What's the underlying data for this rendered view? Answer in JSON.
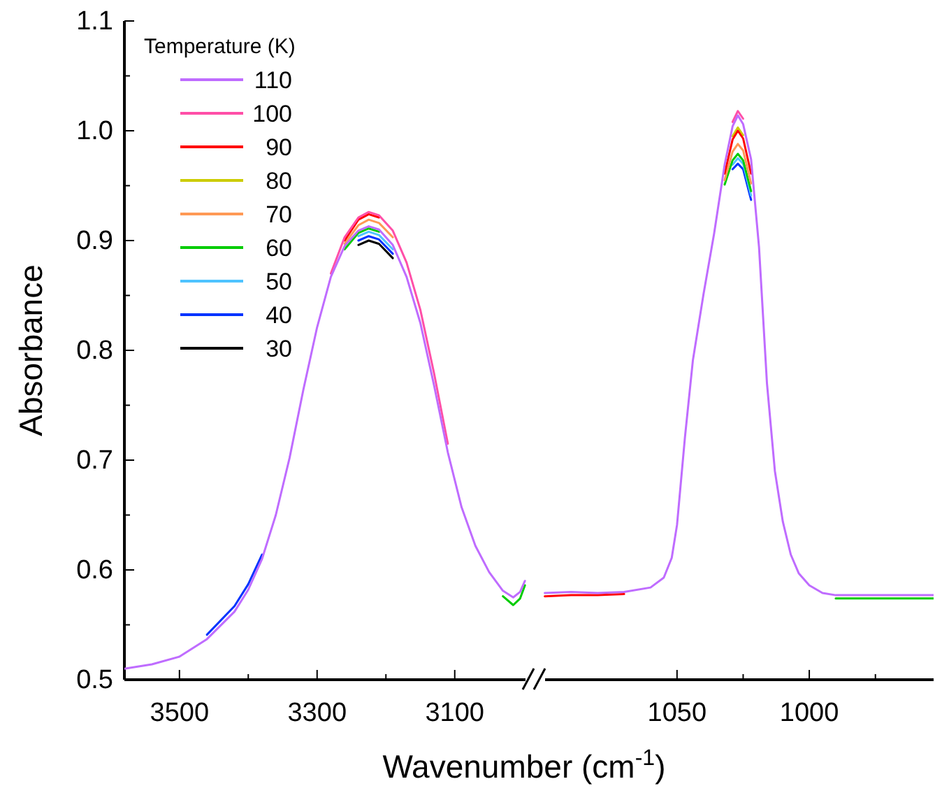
{
  "chart_data": [
    {
      "type": "line",
      "xlabel": "Wavenumber (cm$^{-1}$)",
      "ylabel": "Absorbance",
      "legend_title": "Temperature (K)",
      "legend": "top left",
      "xlim": [
        3580,
        2985
      ],
      "xticks": [
        3500,
        {
          "value": 3400,
          "label": null
        },
        3300,
        {
          "value": 3200,
          "label": null
        },
        3100
      ],
      "ylim": [
        0.5,
        1.1
      ],
      "yticks": [
        {
          "value": 0.5,
          "label": "0.5"
        },
        {
          "value": 0.55,
          "label": null
        },
        {
          "value": 0.6,
          "label": "0.6"
        },
        {
          "value": 0.65,
          "label": null
        },
        {
          "value": 0.7,
          "label": "0.7"
        },
        {
          "value": 0.75,
          "label": null
        },
        {
          "value": 0.8,
          "label": "0.8"
        },
        {
          "value": 0.85,
          "label": null
        },
        {
          "value": 0.9,
          "label": "0.9"
        },
        {
          "value": 0.95,
          "label": null
        },
        {
          "value": 1.0,
          "label": "1.0"
        },
        {
          "value": 1.05,
          "label": null
        },
        {
          "value": 1.1,
          "label": "1.1"
        }
      ],
      "x": [
        3580,
        3540,
        3500,
        3460,
        3420,
        3400,
        3380,
        3360,
        3340,
        3320,
        3300,
        3280,
        3260,
        3240,
        3225,
        3210,
        3190,
        3170,
        3150,
        3130,
        3110,
        3090,
        3070,
        3050,
        3030,
        3015,
        3005,
        2998
      ],
      "series": [
        {
          "name": "110",
          "color": "#bf6cff",
          "values": [
            0.51,
            0.514,
            0.521,
            0.537,
            0.562,
            0.582,
            0.61,
            0.65,
            0.702,
            0.764,
            0.821,
            0.867,
            0.895,
            0.909,
            0.913,
            0.91,
            0.896,
            0.867,
            0.825,
            0.768,
            0.707,
            0.657,
            0.622,
            0.598,
            0.581,
            0.575,
            0.58,
            0.59
          ]
        },
        {
          "name": "100",
          "color": "#ff4fa8",
          "values": [
            null,
            null,
            null,
            null,
            null,
            null,
            null,
            null,
            null,
            null,
            null,
            0.87,
            0.903,
            0.921,
            0.926,
            0.923,
            0.909,
            0.88,
            0.837,
            0.779,
            0.715,
            null,
            null,
            null,
            null,
            null,
            null,
            null
          ]
        },
        {
          "name": "90",
          "color": "#ff0000",
          "values": [
            null,
            null,
            null,
            null,
            null,
            null,
            null,
            null,
            null,
            null,
            null,
            null,
            0.9,
            0.919,
            0.924,
            0.921,
            null,
            null,
            null,
            null,
            null,
            null,
            null,
            null,
            null,
            null,
            null,
            null
          ]
        },
        {
          "name": "80",
          "color": "#cccc00",
          "values": [
            null,
            null,
            null,
            null,
            null,
            null,
            null,
            null,
            null,
            null,
            null,
            null,
            null,
            null,
            null,
            null,
            null,
            null,
            null,
            null,
            null,
            null,
            null,
            null,
            null,
            null,
            null,
            null
          ]
        },
        {
          "name": "70",
          "color": "#ff9955",
          "values": [
            null,
            null,
            null,
            null,
            null,
            null,
            null,
            null,
            null,
            null,
            null,
            null,
            0.897,
            0.914,
            0.919,
            0.916,
            0.903,
            null,
            null,
            null,
            null,
            null,
            null,
            null,
            null,
            null,
            null,
            null
          ]
        },
        {
          "name": "60",
          "color": "#00cc00",
          "values": [
            null,
            null,
            null,
            null,
            null,
            null,
            null,
            null,
            null,
            null,
            null,
            null,
            0.892,
            0.907,
            0.911,
            0.908,
            null,
            null,
            null,
            null,
            null,
            null,
            null,
            null,
            0.576,
            0.568,
            0.574,
            0.586
          ]
        },
        {
          "name": "50",
          "color": "#4fc3ff",
          "values": [
            null,
            null,
            null,
            null,
            null,
            null,
            null,
            null,
            null,
            null,
            null,
            null,
            null,
            0.904,
            0.908,
            0.905,
            0.892,
            null,
            null,
            null,
            null,
            null,
            null,
            null,
            null,
            null,
            null,
            null
          ]
        },
        {
          "name": "40",
          "color": "#0033ff",
          "values": [
            null,
            null,
            null,
            0.541,
            0.567,
            0.587,
            0.614,
            null,
            null,
            null,
            null,
            null,
            null,
            0.9,
            0.904,
            0.901,
            0.888,
            null,
            null,
            null,
            null,
            null,
            null,
            null,
            null,
            null,
            null,
            null
          ]
        },
        {
          "name": "30",
          "color": "#000000",
          "values": [
            null,
            null,
            null,
            null,
            null,
            null,
            null,
            null,
            null,
            null,
            null,
            null,
            null,
            0.896,
            0.9,
            0.897,
            0.884,
            null,
            null,
            null,
            null,
            null,
            null,
            null,
            null,
            null,
            null,
            null
          ]
        }
      ]
    },
    {
      "type": "line",
      "tick_labels": "x",
      "xlim": [
        1102,
        953
      ],
      "xticks": [
        1050,
        {
          "value": 1025,
          "label": null
        },
        1000,
        {
          "value": 975,
          "label": null
        }
      ],
      "ylim": [
        0.5,
        1.1
      ],
      "x": [
        1100,
        1090,
        1080,
        1070,
        1060,
        1055,
        1052,
        1050,
        1047,
        1044,
        1040,
        1036,
        1032,
        1029,
        1027,
        1025,
        1022,
        1019,
        1016,
        1013,
        1010,
        1007,
        1004,
        1000,
        995,
        990,
        980,
        970,
        960,
        953
      ],
      "series": [
        {
          "color": "#bf6cff",
          "values": [
            0.579,
            0.58,
            0.579,
            0.58,
            0.584,
            0.593,
            0.611,
            0.641,
            0.721,
            0.791,
            0.851,
            0.906,
            0.969,
            1.004,
            1.014,
            1.006,
            0.974,
            0.894,
            0.77,
            0.69,
            0.644,
            0.614,
            0.597,
            0.586,
            0.579,
            0.577,
            0.577,
            0.577,
            0.577,
            0.577
          ]
        },
        {
          "color": "#ff4fa8",
          "values": [
            null,
            null,
            null,
            null,
            null,
            null,
            null,
            null,
            null,
            null,
            null,
            null,
            null,
            1.008,
            1.018,
            1.011,
            null,
            null,
            null,
            null,
            null,
            null,
            null,
            null,
            null,
            null,
            null,
            null,
            null,
            null
          ]
        },
        {
          "color": "#ff0000",
          "values": [
            0.576,
            0.577,
            0.577,
            0.578,
            null,
            null,
            null,
            null,
            null,
            null,
            null,
            null,
            0.961,
            0.992,
            1.0,
            0.993,
            0.961,
            null,
            null,
            null,
            null,
            null,
            null,
            null,
            null,
            null,
            null,
            null,
            null,
            null
          ]
        },
        {
          "color": "#cccc00",
          "values": [
            null,
            null,
            null,
            null,
            null,
            null,
            null,
            null,
            null,
            null,
            null,
            null,
            null,
            0.995,
            1.003,
            0.996,
            null,
            null,
            null,
            null,
            null,
            null,
            null,
            null,
            null,
            null,
            null,
            null,
            null,
            null
          ]
        },
        {
          "color": "#ff9955",
          "values": [
            null,
            null,
            null,
            null,
            null,
            null,
            null,
            null,
            null,
            null,
            null,
            null,
            0.955,
            0.981,
            0.988,
            0.982,
            0.952,
            null,
            null,
            null,
            null,
            null,
            null,
            null,
            null,
            null,
            null,
            null,
            null,
            null
          ]
        },
        {
          "color": "#00cc00",
          "values": [
            null,
            null,
            null,
            null,
            null,
            null,
            null,
            null,
            null,
            null,
            null,
            null,
            0.951,
            0.973,
            0.979,
            0.973,
            0.945,
            null,
            null,
            null,
            null,
            null,
            null,
            null,
            null,
            0.574,
            0.574,
            0.574,
            0.574,
            0.574
          ]
        },
        {
          "color": "#4fc3ff",
          "values": [
            null,
            null,
            null,
            null,
            null,
            null,
            null,
            null,
            null,
            null,
            null,
            null,
            null,
            0.969,
            0.975,
            0.97,
            0.941,
            null,
            null,
            null,
            null,
            null,
            null,
            null,
            null,
            null,
            null,
            null,
            null,
            null
          ]
        },
        {
          "color": "#0033ff",
          "values": [
            null,
            null,
            null,
            null,
            null,
            null,
            null,
            null,
            null,
            null,
            null,
            null,
            null,
            0.965,
            0.97,
            0.965,
            0.937,
            null,
            null,
            null,
            null,
            null,
            null,
            null,
            null,
            null,
            null,
            null,
            null,
            null
          ]
        },
        {
          "color": "#000000",
          "values": [
            null,
            null,
            null,
            null,
            null,
            null,
            null,
            null,
            null,
            null,
            null,
            null,
            null,
            null,
            null,
            null,
            null,
            null,
            null,
            null,
            null,
            null,
            null,
            null,
            null,
            null,
            null,
            null,
            null,
            null
          ]
        }
      ]
    }
  ]
}
